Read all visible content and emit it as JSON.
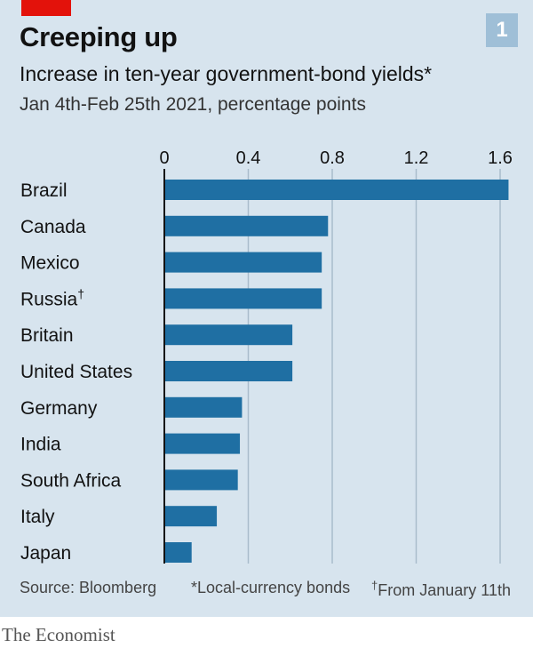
{
  "header": {
    "badge": "1",
    "title": "Creeping up",
    "subtitle": "Increase in ten-year government-bond yields*",
    "subtitle2": "Jan 4th-Feb 25th 2021, percentage points"
  },
  "colors": {
    "bar": "#1f6fa3",
    "background": "#d7e4ee",
    "accent": "#e3120b",
    "grid": "#a9bccb",
    "axis": "#121212"
  },
  "chart_data": {
    "type": "bar",
    "orientation": "horizontal",
    "title": "Creeping up",
    "subtitle": "Increase in ten-year government-bond yields*",
    "units": "Jan 4th-Feb 25th 2021, percentage points",
    "categories": [
      "Brazil",
      "Canada",
      "Mexico",
      "Russia",
      "Britain",
      "United States",
      "Germany",
      "India",
      "South Africa",
      "Italy",
      "Japan"
    ],
    "category_marks": [
      "",
      "",
      "",
      "†",
      "",
      "",
      "",
      "",
      "",
      "",
      ""
    ],
    "values": [
      1.64,
      0.78,
      0.75,
      0.75,
      0.61,
      0.61,
      0.37,
      0.36,
      0.35,
      0.25,
      0.13
    ],
    "ticks": [
      0,
      0.4,
      0.8,
      1.2,
      1.6
    ],
    "tick_labels": [
      "0",
      "0.4",
      "0.8",
      "1.2",
      "1.6"
    ],
    "xlim": [
      0,
      1.7
    ],
    "grid": true,
    "axis_position": "top"
  },
  "footer": {
    "source": "Source: Bloomberg",
    "note1": "*Local-currency bonds",
    "note2_mark": "†",
    "note2": "From January 11th"
  },
  "brand": "The Economist"
}
